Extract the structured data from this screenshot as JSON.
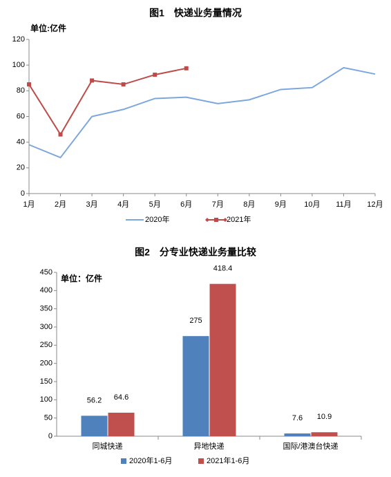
{
  "chart_data": [
    {
      "type": "line",
      "title": "图1　快递业务量情况",
      "unit": "单位:亿件",
      "categories": [
        "1月",
        "2月",
        "3月",
        "4月",
        "5月",
        "6月",
        "7月",
        "8月",
        "9月",
        "10月",
        "11月",
        "12月"
      ],
      "series": [
        {
          "name": "2020年",
          "color": "#7ba7dd",
          "values": [
            38,
            28,
            60,
            65.5,
            74,
            75,
            70,
            73,
            81,
            82.5,
            98,
            93
          ]
        },
        {
          "name": "2021年",
          "color": "#be4b48",
          "marker": "square",
          "values": [
            85,
            46,
            88,
            85,
            92.5,
            97.5,
            null,
            null,
            null,
            null,
            null,
            null
          ]
        }
      ],
      "ylim": [
        0,
        120
      ],
      "yticks": [
        0,
        20,
        40,
        60,
        80,
        100,
        120
      ],
      "grid": false
    },
    {
      "type": "bar",
      "title": "图2　分专业快递业务量比较",
      "unit": "单位：亿件",
      "categories": [
        "同城快递",
        "异地快递",
        "国际/港澳台快递"
      ],
      "series": [
        {
          "name": "2020年1-6月",
          "color": "#4f81bd",
          "values": [
            56.2,
            275,
            7.6
          ]
        },
        {
          "name": "2021年1-6月",
          "color": "#c0504d",
          "values": [
            64.6,
            418.4,
            10.9
          ]
        }
      ],
      "ylim": [
        0,
        450
      ],
      "yticks": [
        0,
        50,
        100,
        150,
        200,
        250,
        300,
        350,
        400,
        450
      ],
      "grid": false
    }
  ]
}
